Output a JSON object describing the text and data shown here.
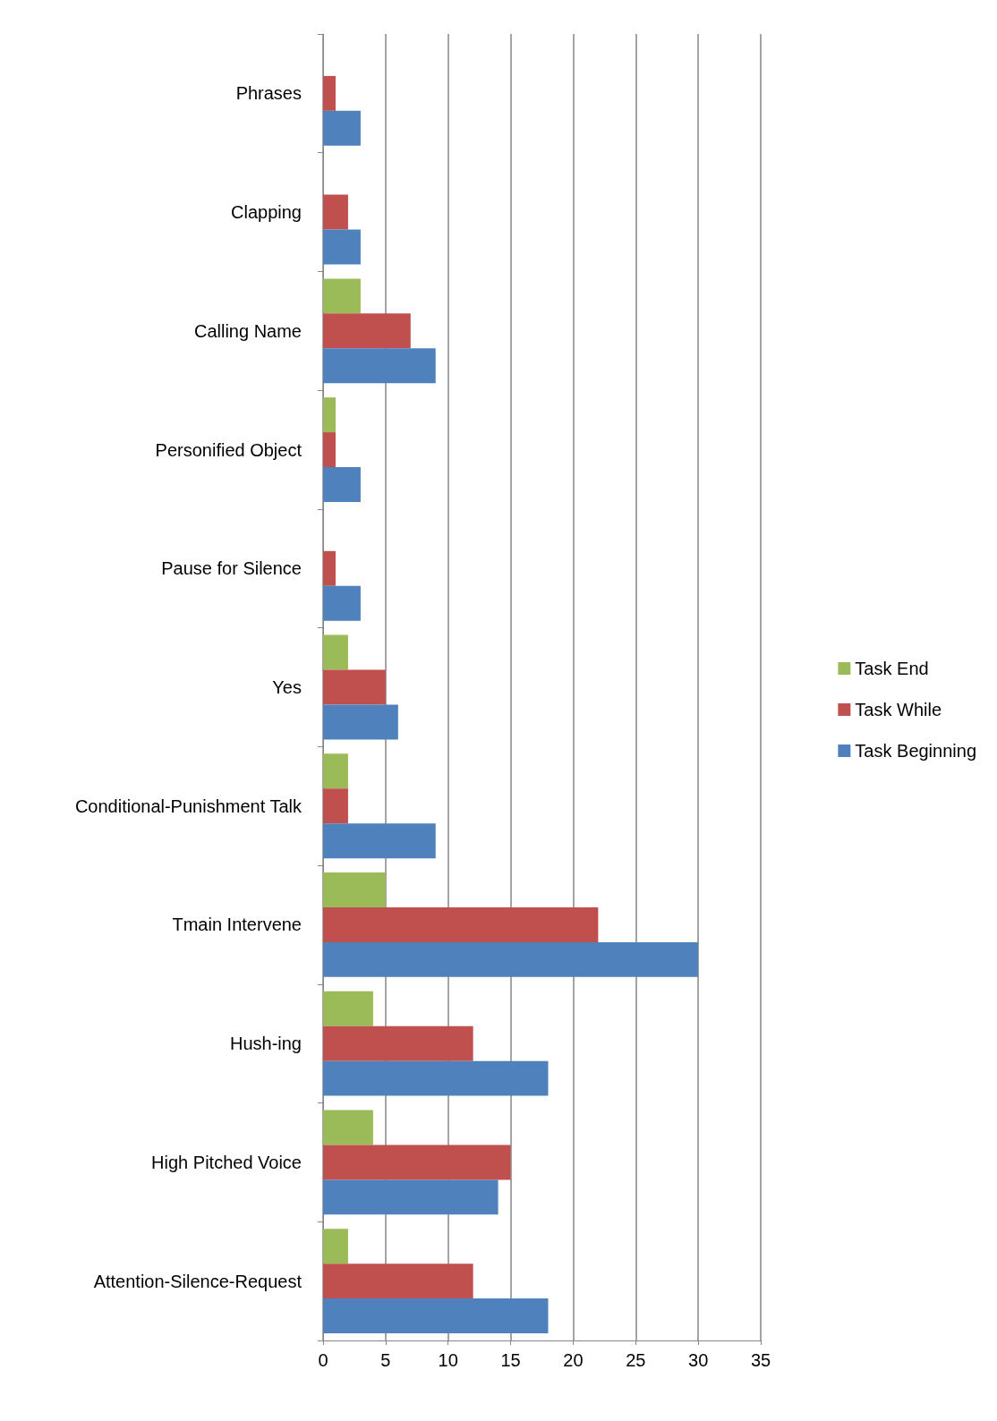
{
  "chart_data": {
    "type": "bar",
    "orientation": "horizontal",
    "categories": [
      "Phrases",
      "Clapping",
      "Calling Name",
      "Personified Object",
      "Pause for Silence",
      "Yes",
      "Conditional-Punishment Talk",
      "Tmain Intervene",
      "Hush-ing",
      "High Pitched Voice",
      "Attention-Silence-Request"
    ],
    "series": [
      {
        "name": "Task End",
        "color": "#9bbb59",
        "values": [
          0,
          0,
          3,
          1,
          0,
          2,
          2,
          5,
          4,
          4,
          2
        ]
      },
      {
        "name": "Task While",
        "color": "#c0504d",
        "values": [
          1,
          2,
          7,
          1,
          1,
          5,
          2,
          22,
          12,
          15,
          12
        ]
      },
      {
        "name": "Task Beginning",
        "color": "#4f81bd",
        "values": [
          3,
          3,
          9,
          3,
          3,
          6,
          9,
          30,
          18,
          14,
          18
        ]
      }
    ],
    "xlim": [
      0,
      35
    ],
    "xticks": [
      0,
      5,
      10,
      15,
      20,
      25,
      30,
      35
    ],
    "grid": "x",
    "legend": "right"
  }
}
